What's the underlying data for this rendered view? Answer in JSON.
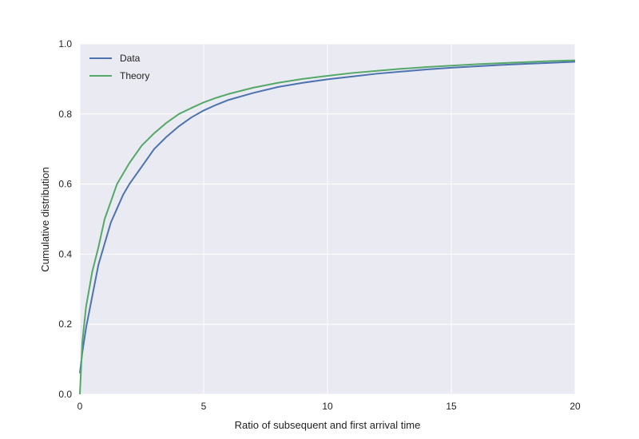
{
  "chart_data": {
    "type": "line",
    "xlabel": "Ratio of subsequent and first arrival time",
    "ylabel": "Cumulative distribution",
    "xlim": [
      0,
      20
    ],
    "ylim": [
      0,
      1.0
    ],
    "x_ticks": [
      0,
      5,
      10,
      15,
      20
    ],
    "x_tick_labels": [
      "0",
      "5",
      "10",
      "15",
      "20"
    ],
    "y_ticks": [
      0,
      0.2,
      0.4,
      0.6,
      0.8,
      1.0
    ],
    "y_tick_labels": [
      "0.0",
      "0.2",
      "0.4",
      "0.6",
      "0.8",
      "1.0"
    ],
    "grid": true,
    "legend_position": "top-left",
    "background_color": "#eaeaf2",
    "grid_color": "#ffffff",
    "series": [
      {
        "name": "Data",
        "color": "#4c72b0",
        "x": [
          0,
          0.1,
          0.25,
          0.5,
          0.75,
          1.0,
          1.25,
          1.5,
          1.75,
          2.0,
          2.5,
          3.0,
          3.5,
          4.0,
          4.5,
          5.0,
          5.5,
          6.0,
          7.0,
          8.0,
          9.0,
          10.0,
          11.0,
          12.0,
          13.0,
          14.0,
          15.0,
          16.0,
          17.0,
          18.0,
          19.0,
          20.0
        ],
        "y": [
          0.06,
          0.12,
          0.19,
          0.28,
          0.37,
          0.43,
          0.49,
          0.53,
          0.57,
          0.6,
          0.65,
          0.7,
          0.735,
          0.765,
          0.79,
          0.81,
          0.826,
          0.84,
          0.86,
          0.877,
          0.889,
          0.899,
          0.907,
          0.915,
          0.921,
          0.927,
          0.932,
          0.936,
          0.94,
          0.943,
          0.946,
          0.949
        ]
      },
      {
        "name": "Theory",
        "color": "#55a868",
        "x": [
          0,
          0.1,
          0.25,
          0.5,
          0.75,
          1.0,
          1.25,
          1.5,
          1.75,
          2.0,
          2.5,
          3.0,
          3.5,
          4.0,
          4.5,
          5.0,
          5.5,
          6.0,
          7.0,
          8.0,
          9.0,
          10.0,
          11.0,
          12.0,
          13.0,
          14.0,
          15.0,
          16.0,
          17.0,
          18.0,
          19.0,
          20.0
        ],
        "y": [
          0.0,
          0.15,
          0.25,
          0.35,
          0.42,
          0.5,
          0.55,
          0.6,
          0.63,
          0.66,
          0.71,
          0.745,
          0.775,
          0.8,
          0.817,
          0.833,
          0.846,
          0.857,
          0.875,
          0.889,
          0.9,
          0.909,
          0.917,
          0.923,
          0.929,
          0.934,
          0.938,
          0.942,
          0.945,
          0.948,
          0.951,
          0.953
        ]
      }
    ]
  }
}
